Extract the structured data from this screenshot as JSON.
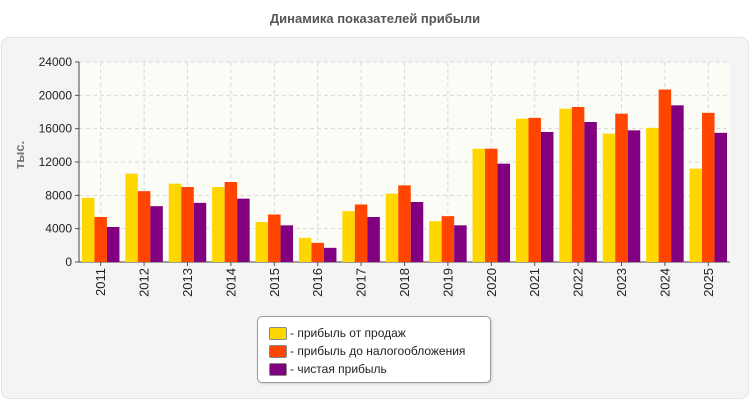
{
  "colors": {
    "series": [
      "#ffd700",
      "#ff4500",
      "#800080"
    ]
  },
  "chart_data": {
    "type": "bar",
    "title": "Динамика показателей прибыли",
    "ylabel": "тыс.",
    "xlabel": "",
    "ylim": [
      0,
      24000
    ],
    "yticks": [
      "0",
      "4000",
      "8000",
      "12000",
      "16000",
      "20000",
      "24000"
    ],
    "grid": true,
    "legend_position": "bottom",
    "categories": [
      "2011",
      "2012",
      "2013",
      "2014",
      "2015",
      "2016",
      "2017",
      "2018",
      "2019",
      "2020",
      "2021",
      "2022",
      "2023",
      "2024",
      "2025"
    ],
    "series": [
      {
        "name": "- прибыль от продаж",
        "values": [
          7700,
          10600,
          9400,
          9000,
          4800,
          2900,
          6100,
          8200,
          4900,
          13600,
          17200,
          18400,
          15400,
          16100,
          11200
        ]
      },
      {
        "name": "- прибыль до налогообложения",
        "values": [
          5400,
          8500,
          9000,
          9600,
          5700,
          2300,
          6900,
          9200,
          5500,
          13600,
          17300,
          18600,
          17800,
          20700,
          17900
        ]
      },
      {
        "name": "- чистая прибыль",
        "values": [
          4200,
          6700,
          7100,
          7600,
          4400,
          1700,
          5400,
          7200,
          4400,
          11800,
          15600,
          16800,
          15800,
          18800,
          15500
        ]
      }
    ]
  }
}
